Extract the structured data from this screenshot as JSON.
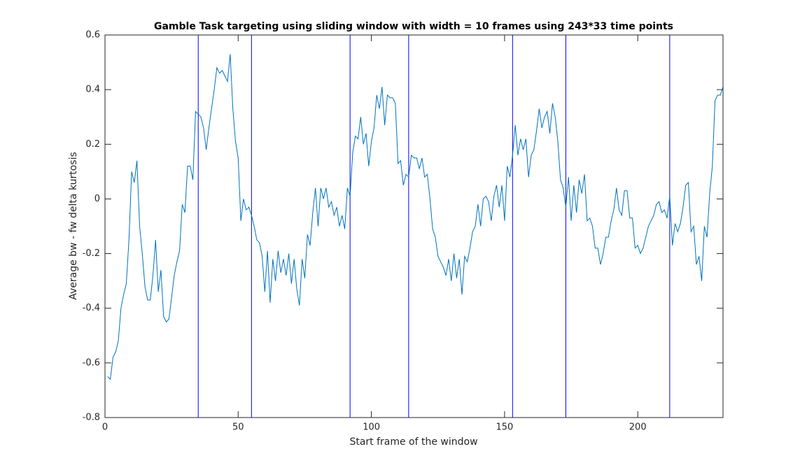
{
  "chart_data": {
    "type": "line",
    "title": "Gamble Task targeting using sliding window with width = 10 frames using 243*33 time points",
    "x_label": "Start frame of the window",
    "y_label": "Average bw - fw delta kurtosis",
    "xlim": [
      0,
      232
    ],
    "ylim": [
      -0.8,
      0.6
    ],
    "xticks": [
      0,
      50,
      100,
      150,
      200
    ],
    "yticks": [
      -0.8,
      -0.6,
      -0.4,
      -0.2,
      0,
      0.2,
      0.4,
      0.6
    ],
    "grid": false,
    "vertical_lines": {
      "color": "#0000ff",
      "x": [
        35,
        55,
        92,
        114,
        153,
        173,
        212
      ]
    },
    "x": [
      1,
      2,
      3,
      4,
      5,
      6,
      7,
      8,
      9,
      10,
      11,
      12,
      13,
      14,
      15,
      16,
      17,
      18,
      19,
      20,
      21,
      22,
      23,
      24,
      25,
      26,
      27,
      28,
      29,
      30,
      31,
      32,
      33,
      34,
      35,
      36,
      37,
      38,
      39,
      40,
      41,
      42,
      43,
      44,
      45,
      46,
      47,
      48,
      49,
      50,
      51,
      52,
      53,
      54,
      55,
      56,
      57,
      58,
      59,
      60,
      61,
      62,
      63,
      64,
      65,
      66,
      67,
      68,
      69,
      70,
      71,
      72,
      73,
      74,
      75,
      76,
      77,
      78,
      79,
      80,
      81,
      82,
      83,
      84,
      85,
      86,
      87,
      88,
      89,
      90,
      91,
      92,
      93,
      94,
      95,
      96,
      97,
      98,
      99,
      100,
      101,
      102,
      103,
      104,
      105,
      106,
      107,
      108,
      109,
      110,
      111,
      112,
      113,
      114,
      115,
      116,
      117,
      118,
      119,
      120,
      121,
      122,
      123,
      124,
      125,
      126,
      127,
      128,
      129,
      130,
      131,
      132,
      133,
      134,
      135,
      136,
      137,
      138,
      139,
      140,
      141,
      142,
      143,
      144,
      145,
      146,
      147,
      148,
      149,
      150,
      151,
      152,
      153,
      154,
      155,
      156,
      157,
      158,
      159,
      160,
      161,
      162,
      163,
      164,
      165,
      166,
      167,
      168,
      169,
      170,
      171,
      172,
      173,
      174,
      175,
      176,
      177,
      178,
      179,
      180,
      181,
      182,
      183,
      184,
      185,
      186,
      187,
      188,
      189,
      190,
      191,
      192,
      193,
      194,
      195,
      196,
      197,
      198,
      199,
      200,
      201,
      202,
      203,
      204,
      205,
      206,
      207,
      208,
      209,
      210,
      211,
      212,
      213,
      214,
      215,
      216,
      217,
      218,
      219,
      220,
      221,
      222,
      223,
      224,
      225,
      226,
      227,
      228,
      229,
      230,
      231,
      232
    ],
    "series": [
      {
        "color": "#0072bd",
        "values": [
          -0.65,
          -0.66,
          -0.58,
          -0.56,
          -0.52,
          -0.4,
          -0.35,
          -0.31,
          -0.15,
          0.1,
          0.06,
          0.14,
          -0.1,
          -0.2,
          -0.32,
          -0.37,
          -0.37,
          -0.28,
          -0.15,
          -0.34,
          -0.26,
          -0.43,
          -0.45,
          -0.44,
          -0.36,
          -0.28,
          -0.23,
          -0.19,
          -0.02,
          -0.05,
          0.12,
          0.12,
          0.07,
          0.32,
          0.31,
          0.3,
          0.26,
          0.18,
          0.26,
          0.33,
          0.4,
          0.48,
          0.46,
          0.47,
          0.45,
          0.43,
          0.53,
          0.33,
          0.21,
          0.15,
          -0.08,
          0.0,
          -0.04,
          -0.03,
          -0.06,
          -0.1,
          -0.15,
          -0.16,
          -0.21,
          -0.34,
          -0.19,
          -0.38,
          -0.22,
          -0.3,
          -0.19,
          -0.27,
          -0.22,
          -0.28,
          -0.2,
          -0.31,
          -0.22,
          -0.33,
          -0.39,
          -0.22,
          -0.29,
          -0.13,
          -0.17,
          -0.05,
          0.04,
          -0.1,
          0.04,
          0.0,
          0.04,
          -0.03,
          -0.01,
          -0.06,
          -0.03,
          -0.1,
          -0.06,
          -0.11,
          0.04,
          0.01,
          0.17,
          0.23,
          0.22,
          0.3,
          0.2,
          0.24,
          0.12,
          0.21,
          0.26,
          0.38,
          0.33,
          0.41,
          0.27,
          0.38,
          0.37,
          0.37,
          0.35,
          0.13,
          0.14,
          0.05,
          0.09,
          0.08,
          0.16,
          0.15,
          0.15,
          0.11,
          0.15,
          0.08,
          0.09,
          0.0,
          -0.11,
          -0.14,
          -0.21,
          -0.23,
          -0.25,
          -0.28,
          -0.22,
          -0.3,
          -0.2,
          -0.29,
          -0.22,
          -0.35,
          -0.21,
          -0.23,
          -0.18,
          -0.12,
          -0.1,
          -0.02,
          -0.1,
          0.0,
          0.01,
          -0.01,
          -0.08,
          0.01,
          0.05,
          -0.03,
          0.05,
          -0.08,
          0.12,
          0.08,
          0.16,
          0.27,
          0.16,
          0.22,
          0.18,
          0.22,
          0.08,
          0.16,
          0.18,
          0.25,
          0.33,
          0.26,
          0.3,
          0.32,
          0.24,
          0.35,
          0.3,
          0.21,
          0.07,
          0.04,
          -0.03,
          0.08,
          -0.08,
          0.05,
          -0.05,
          0.07,
          0.02,
          0.09,
          -0.08,
          -0.07,
          -0.1,
          -0.18,
          -0.18,
          -0.24,
          -0.2,
          -0.14,
          -0.14,
          -0.08,
          -0.04,
          0.04,
          -0.04,
          -0.06,
          0.03,
          0.03,
          -0.07,
          -0.07,
          -0.18,
          -0.17,
          -0.2,
          -0.18,
          -0.14,
          -0.1,
          -0.08,
          -0.06,
          -0.02,
          -0.01,
          -0.05,
          -0.04,
          -0.07,
          0.01,
          -0.17,
          -0.09,
          -0.12,
          -0.09,
          -0.03,
          0.05,
          0.06,
          -0.12,
          -0.1,
          -0.24,
          -0.21,
          -0.3,
          -0.1,
          -0.14,
          0.02,
          0.12,
          0.36,
          0.38,
          0.38,
          0.41
        ]
      }
    ]
  }
}
